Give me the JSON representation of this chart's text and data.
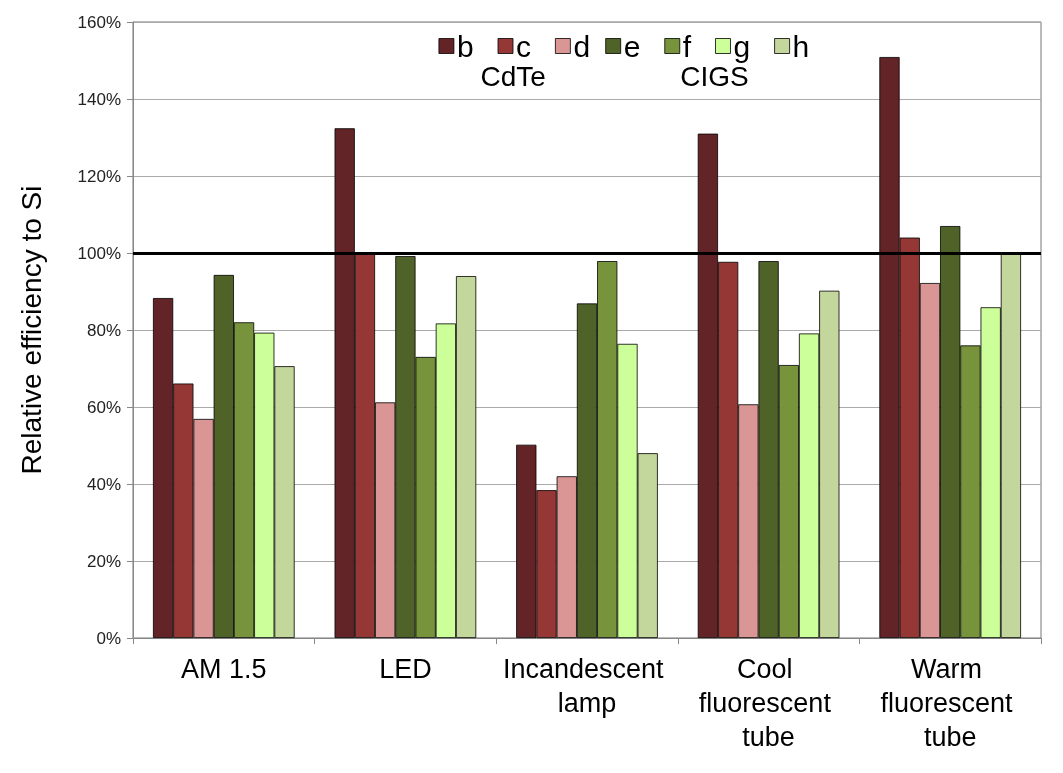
{
  "chart_data": {
    "type": "bar",
    "ylabel": "Relative efficiency to Si",
    "categories": [
      "AM 1.5",
      "LED",
      "Incandescent lamp",
      "Cool fluorescent tube",
      "Warm fluorescent tube"
    ],
    "series": [
      {
        "name": "b",
        "color": "#622426",
        "values": [
          88.3,
          132.4,
          50.2,
          131.0,
          150.9
        ]
      },
      {
        "name": "c",
        "color": "#953735",
        "values": [
          66.1,
          100,
          38.4,
          97.7,
          104.0
        ]
      },
      {
        "name": "d",
        "color": "#d99694",
        "values": [
          56.9,
          61.2,
          42.0,
          60.7,
          92.2
        ]
      },
      {
        "name": "e",
        "color": "#4f6228",
        "values": [
          94.3,
          99.2,
          86.9,
          97.9,
          107.0
        ]
      },
      {
        "name": "f",
        "color": "#77933c",
        "values": [
          82.0,
          73.0,
          97.9,
          70.9,
          76.0
        ]
      },
      {
        "name": "g",
        "color": "#ccff99",
        "values": [
          79.3,
          81.7,
          76.4,
          79.1,
          85.9
        ]
      },
      {
        "name": "h",
        "color": "#c3d69b",
        "values": [
          70.6,
          94.0,
          48.0,
          90.2,
          100
        ]
      }
    ],
    "ylim": [
      0,
      160
    ],
    "yticks": [
      {
        "value": 0,
        "label": "0%"
      },
      {
        "value": 20,
        "label": "20%"
      },
      {
        "value": 40,
        "label": "40%"
      },
      {
        "value": 60,
        "label": "60%"
      },
      {
        "value": 80,
        "label": "80%"
      },
      {
        "value": 100,
        "label": "100%"
      },
      {
        "value": 120,
        "label": "120%"
      },
      {
        "value": 140,
        "label": "140%"
      },
      {
        "value": 160,
        "label": "160%"
      }
    ],
    "ref_lines": [
      {
        "axis": "y",
        "value": 100,
        "label": null,
        "color": "#000000"
      }
    ],
    "annotations": [
      "CdTe",
      "CIGS"
    ],
    "grid": "y",
    "legend": "top"
  }
}
